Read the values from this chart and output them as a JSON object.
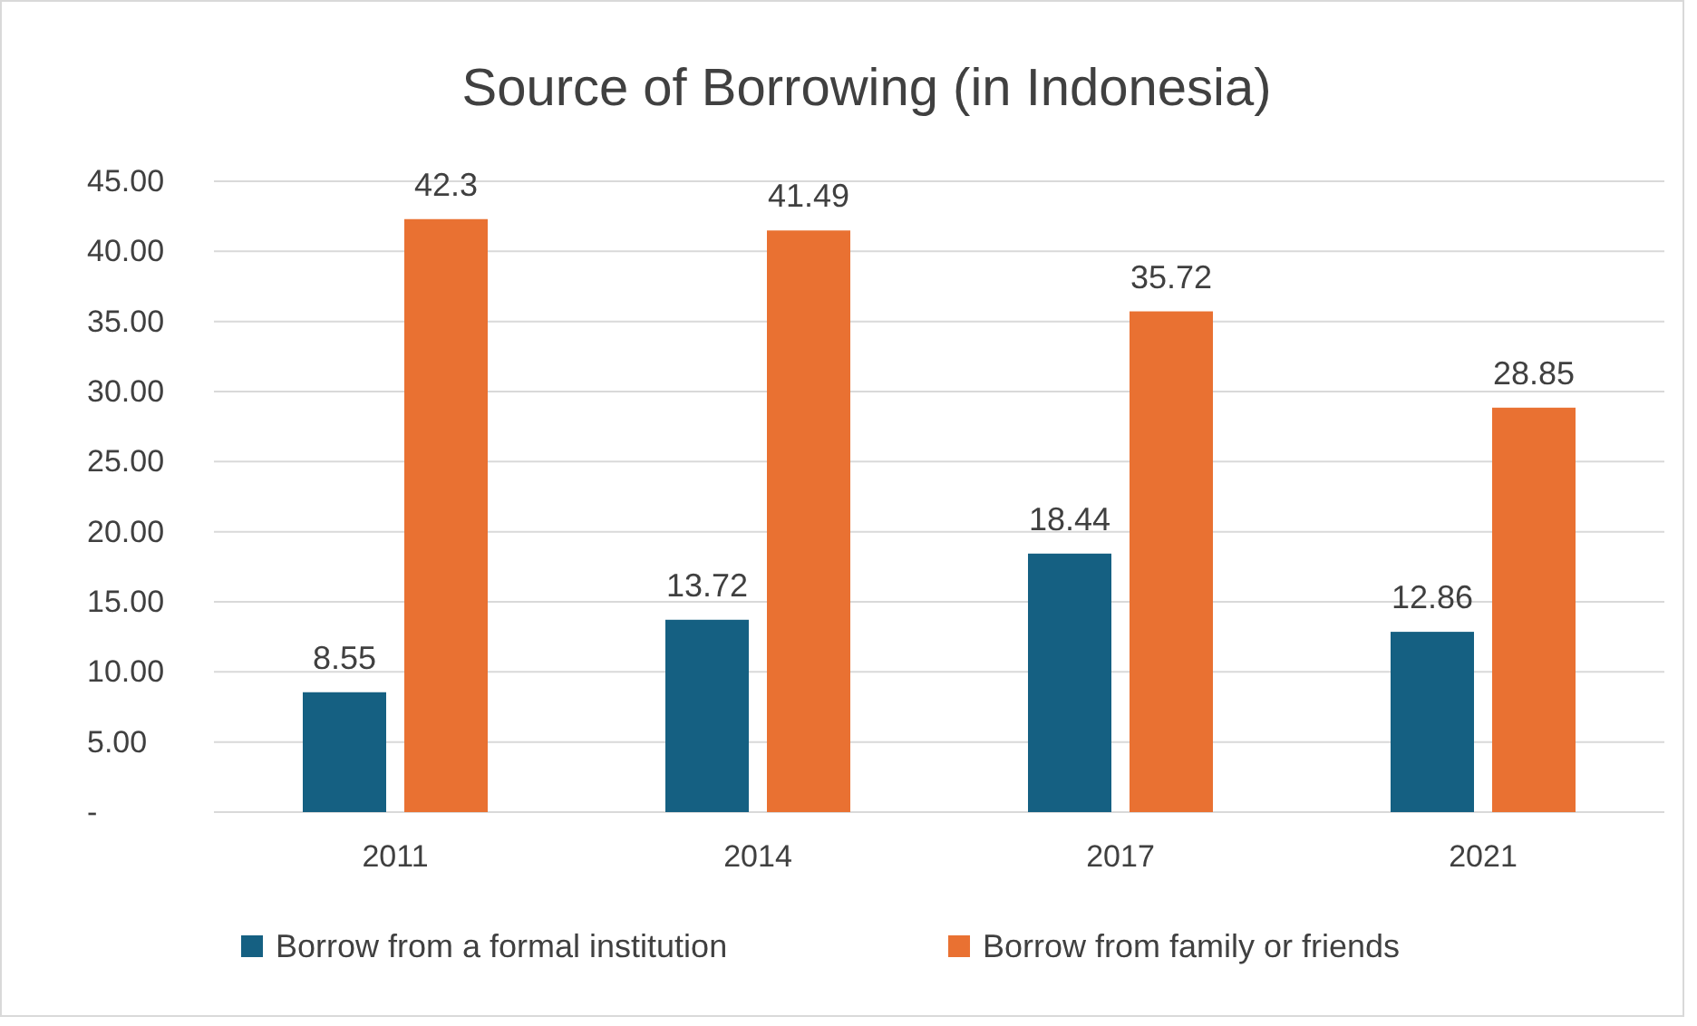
{
  "chart_data": {
    "type": "bar",
    "title": "Source of Borrowing (in Indonesia)",
    "categories": [
      "2011",
      "2014",
      "2017",
      "2021"
    ],
    "series": [
      {
        "name": "Borrow from a formal institution",
        "color": "#156082",
        "values": [
          8.55,
          13.72,
          18.44,
          12.86
        ]
      },
      {
        "name": "Borrow from family or friends",
        "color": "#e97132",
        "values": [
          42.3,
          41.49,
          35.72,
          28.85
        ]
      }
    ],
    "ylim": [
      0,
      45
    ],
    "yticks": [
      {
        "value": 0,
        "label": "-"
      },
      {
        "value": 5,
        "label": "5.00"
      },
      {
        "value": 10,
        "label": "10.00"
      },
      {
        "value": 15,
        "label": "15.00"
      },
      {
        "value": 20,
        "label": "20.00"
      },
      {
        "value": 25,
        "label": "25.00"
      },
      {
        "value": 30,
        "label": "30.00"
      },
      {
        "value": 35,
        "label": "35.00"
      },
      {
        "value": 40,
        "label": "40.00"
      },
      {
        "value": 45,
        "label": "45.00"
      }
    ],
    "grid": "y",
    "legend": "bottom",
    "data_labels": true
  }
}
